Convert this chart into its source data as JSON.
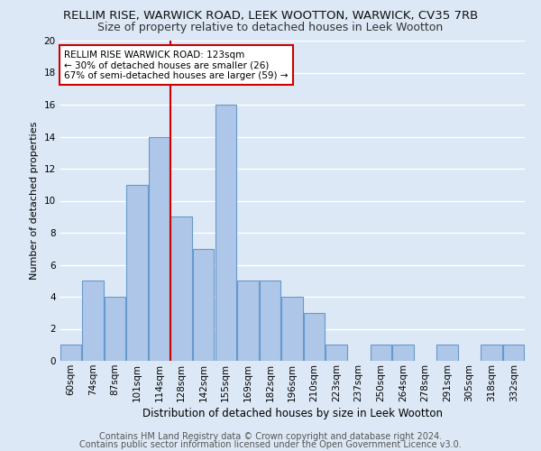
{
  "title": "RELLIM RISE, WARWICK ROAD, LEEK WOOTTON, WARWICK, CV35 7RB",
  "subtitle": "Size of property relative to detached houses in Leek Wootton",
  "xlabel": "Distribution of detached houses by size in Leek Wootton",
  "ylabel": "Number of detached properties",
  "footnote1": "Contains HM Land Registry data © Crown copyright and database right 2024.",
  "footnote2": "Contains public sector information licensed under the Open Government Licence v3.0.",
  "bar_labels": [
    "60sqm",
    "74sqm",
    "87sqm",
    "101sqm",
    "114sqm",
    "128sqm",
    "142sqm",
    "155sqm",
    "169sqm",
    "182sqm",
    "196sqm",
    "210sqm",
    "223sqm",
    "237sqm",
    "250sqm",
    "264sqm",
    "278sqm",
    "291sqm",
    "305sqm",
    "318sqm",
    "332sqm"
  ],
  "bar_values": [
    1,
    5,
    4,
    11,
    14,
    9,
    7,
    16,
    5,
    5,
    4,
    3,
    1,
    0,
    1,
    1,
    0,
    1,
    0,
    1,
    1
  ],
  "bar_color": "#aec6e8",
  "bar_edgecolor": "#6699cc",
  "reference_line_x": 4.5,
  "annotation_text": "RELLIM RISE WARWICK ROAD: 123sqm\n← 30% of detached houses are smaller (26)\n67% of semi-detached houses are larger (59) →",
  "annotation_box_color": "#ffffff",
  "annotation_box_edgecolor": "#cc0000",
  "reference_line_color": "#cc0000",
  "ylim": [
    0,
    20
  ],
  "yticks": [
    0,
    2,
    4,
    6,
    8,
    10,
    12,
    14,
    16,
    18,
    20
  ],
  "background_color": "#dce8f5",
  "grid_color": "#ffffff",
  "title_fontsize": 9.5,
  "subtitle_fontsize": 9,
  "ylabel_fontsize": 8,
  "xlabel_fontsize": 8.5,
  "footnote_fontsize": 7,
  "tick_fontsize": 7.5,
  "annot_fontsize": 7.5
}
